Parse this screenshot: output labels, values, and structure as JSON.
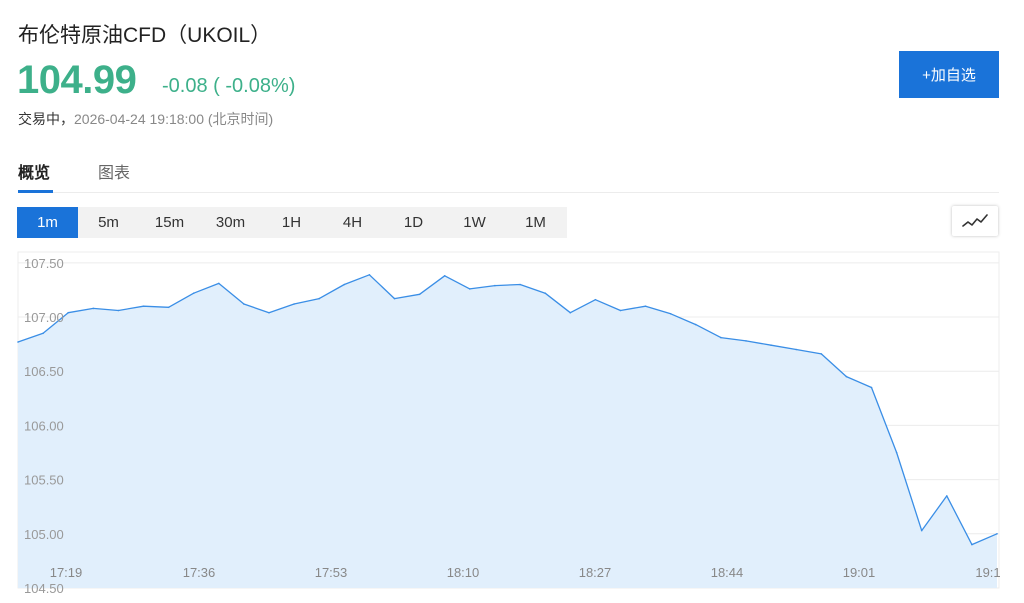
{
  "header": {
    "title": "布伦特原油CFD（UKOIL）",
    "price": "104.99",
    "change": "-0.08 ( -0.08%)",
    "status_label": "交易中，",
    "timestamp": "2026-04-24 19:18:00 (北京时间)",
    "watch_button": "+加自选"
  },
  "tabs": [
    {
      "label": "概览",
      "active": true
    },
    {
      "label": "图表",
      "active": false
    }
  ],
  "intervals": [
    {
      "label": "1m",
      "active": true
    },
    {
      "label": "5m",
      "active": false
    },
    {
      "label": "15m",
      "active": false
    },
    {
      "label": "30m",
      "active": false
    },
    {
      "label": "1H",
      "active": false
    },
    {
      "label": "4H",
      "active": false
    },
    {
      "label": "1D",
      "active": false
    },
    {
      "label": "1W",
      "active": false
    },
    {
      "label": "1M",
      "active": false
    }
  ],
  "icons": {
    "chart_type": "line-chart-icon"
  },
  "colors": {
    "up_price": "#3db08a",
    "accent_blue": "#1a73d9",
    "line": "#3a8ee6",
    "area": "#e1effc"
  },
  "chart_data": {
    "type": "area",
    "x_tick_labels": [
      "17:19",
      "17:36",
      "17:53",
      "18:10",
      "18:27",
      "18:44",
      "19:01",
      "19:1"
    ],
    "y_tick_labels": [
      "107.50",
      "107.00",
      "106.50",
      "106.00",
      "105.50",
      "105.00",
      "104.50"
    ],
    "ylim": [
      104.5,
      107.6
    ],
    "grid": "horizontal",
    "x": [
      "17:19",
      "17:22",
      "17:25",
      "17:28",
      "17:31",
      "17:34",
      "17:37",
      "17:40",
      "17:43",
      "17:46",
      "17:49",
      "17:52",
      "17:55",
      "17:58",
      "18:01",
      "18:04",
      "18:07",
      "18:10",
      "18:13",
      "18:16",
      "18:19",
      "18:22",
      "18:25",
      "18:28",
      "18:31",
      "18:34",
      "18:37",
      "18:40",
      "18:43",
      "18:46",
      "18:49",
      "18:52",
      "18:55",
      "18:58",
      "19:01",
      "19:04",
      "19:07",
      "19:10",
      "19:13",
      "19:17"
    ],
    "series": [
      {
        "values": [
          106.77,
          106.85,
          107.04,
          107.08,
          107.06,
          107.1,
          107.09,
          107.22,
          107.31,
          107.12,
          107.04,
          107.12,
          107.17,
          107.3,
          107.39,
          107.17,
          107.21,
          107.38,
          107.26,
          107.29,
          107.3,
          107.22,
          107.04,
          107.16,
          107.06,
          107.1,
          107.03,
          106.93,
          106.81,
          106.78,
          106.74,
          106.7,
          106.66,
          106.45,
          106.35,
          105.75,
          105.03,
          105.35,
          104.9,
          105.0
        ]
      }
    ]
  }
}
